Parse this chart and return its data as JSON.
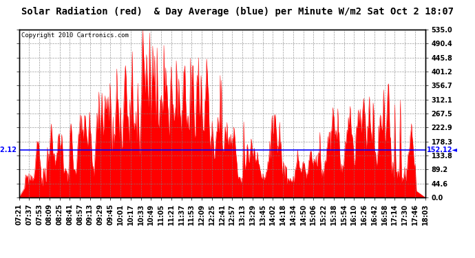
{
  "title": "Solar Radiation (red)  & Day Average (blue) per Minute W/m2 Sat Oct 2 18:07",
  "copyright": "Copyright 2010 Cartronics.com",
  "day_average": 152.12,
  "y_ticks": [
    0.0,
    44.6,
    89.2,
    133.8,
    178.3,
    222.9,
    267.5,
    312.1,
    356.7,
    401.2,
    445.8,
    490.4,
    535.0
  ],
  "x_labels": [
    "07:21",
    "07:37",
    "07:53",
    "08:09",
    "08:25",
    "08:41",
    "08:57",
    "09:13",
    "09:29",
    "09:45",
    "10:01",
    "10:17",
    "10:33",
    "10:49",
    "11:05",
    "11:21",
    "11:37",
    "11:53",
    "12:09",
    "12:25",
    "12:41",
    "12:57",
    "13:13",
    "13:29",
    "13:45",
    "14:02",
    "14:18",
    "14:34",
    "14:50",
    "15:06",
    "15:22",
    "15:38",
    "15:54",
    "16:10",
    "16:26",
    "16:42",
    "16:58",
    "17:14",
    "17:30",
    "17:46",
    "18:03"
  ],
  "ymax": 535.0,
  "ymin": 0.0,
  "fill_color": "#FF0000",
  "line_color": "#0000FF",
  "bg_color": "#FFFFFF",
  "grid_color": "#808080",
  "title_fontsize": 10,
  "copyright_fontsize": 6.5,
  "tick_fontsize": 7
}
